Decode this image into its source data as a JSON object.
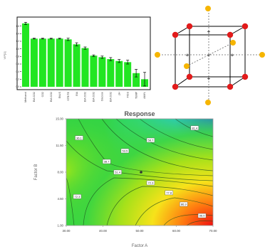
{
  "chart_data": [
    {
      "type": "bar",
      "title": "",
      "ylabel": "VIP[1]",
      "xlabel": "",
      "ylim": [
        0,
        1.8
      ],
      "yticks": [
        "0.0",
        "0.2",
        "0.4",
        "0.6",
        "0.8",
        "1.0",
        "1.2",
        "1.4",
        "1.6"
      ],
      "bar_color": "#22e622",
      "categories": [
        "Methanol",
        "EtA:CO2",
        "CO2",
        "EtA:CO2",
        "EtA/S",
        "STR/TE",
        "EtA",
        "EtA:CO2",
        "EtA:CO2",
        "Glucose",
        "EtA:CO2",
        "pH",
        "FIGS",
        "TEMP",
        "AMYL"
      ],
      "values": [
        1.67,
        1.27,
        1.27,
        1.27,
        1.27,
        1.25,
        1.12,
        1.02,
        0.82,
        0.78,
        0.73,
        0.68,
        0.65,
        0.36,
        0.2
      ],
      "errors": [
        0.03,
        0.01,
        0.01,
        0.01,
        0.01,
        0.03,
        0.04,
        0.03,
        0.02,
        0.03,
        0.04,
        0.04,
        0.05,
        0.1,
        0.18
      ]
    },
    {
      "type": "diagram",
      "title": ""
    },
    {
      "type": "heatmap",
      "title": "Response",
      "xlabel": "Factor A",
      "ylabel": "Factor B",
      "xlim": [
        30,
        70
      ],
      "ylim": [
        1,
        15
      ],
      "xticks": [
        "30.00",
        "40.00",
        "50.00",
        "60.00",
        "70.00"
      ],
      "yticks": [
        "1.00",
        "4.50",
        "8.00",
        "11.50",
        "15.00"
      ],
      "contour_labels": [
        {
          "text": "81.4",
          "x": 65.0,
          "y": 13.8
        },
        {
          "text": "58.7",
          "x": 53.0,
          "y": 12.2
        },
        {
          "text": "36.1",
          "x": 33.5,
          "y": 12.5
        },
        {
          "text": "53.5",
          "x": 46.0,
          "y": 10.8
        },
        {
          "text": "38.7",
          "x": 41.0,
          "y": 9.4
        },
        {
          "text": "51.4",
          "x": 44.0,
          "y": 8.0
        },
        {
          "text": "72.3",
          "x": 53.0,
          "y": 6.6
        },
        {
          "text": "72.3",
          "x": 33.0,
          "y": 4.8
        },
        {
          "text": "77.8",
          "x": 58.0,
          "y": 5.3
        },
        {
          "text": "86.9",
          "x": 62.0,
          "y": 3.8
        },
        {
          "text": "96.0",
          "x": 67.0,
          "y": 2.3
        }
      ]
    }
  ]
}
